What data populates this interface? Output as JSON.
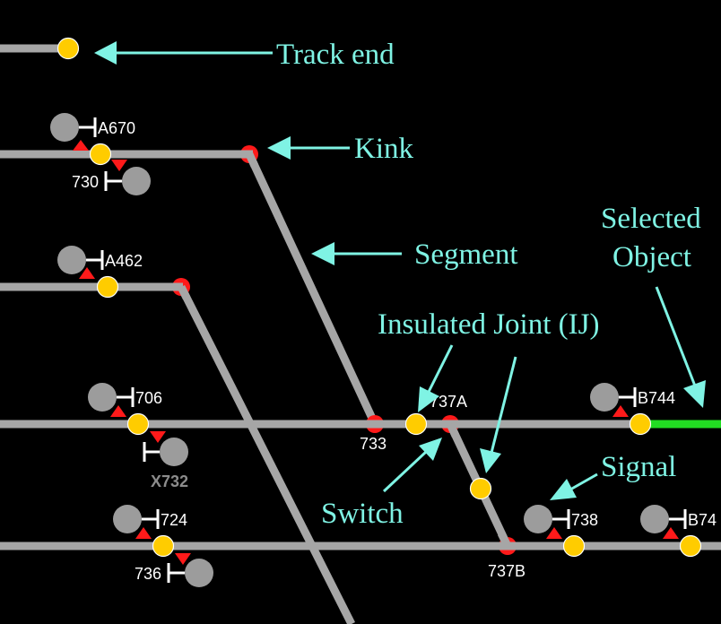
{
  "annotations": {
    "track_end": "Track end",
    "kink": "Kink",
    "segment": "Segment",
    "selected_object_line1": "Selected",
    "selected_object_line2": "Object",
    "insulated_joint": "Insulated Joint (IJ)",
    "switch": "Switch",
    "signal": "Signal"
  },
  "signals": {
    "a670": "A670",
    "s730": "730",
    "a462": "A462",
    "s706": "706",
    "x732": "X732",
    "s724": "724",
    "s736": "736",
    "s738": "738",
    "b744": "B744",
    "b74x": "B74"
  },
  "switches": {
    "s733": "733",
    "s737a": "737A",
    "s737b": "737B"
  },
  "colors": {
    "background": "#000000",
    "track": "#a6a6a6",
    "selected_track": "#22dd22",
    "insulated_joint": "#ffcc00",
    "switch": "#ff1a1a",
    "signal_head": "#9c9c9c",
    "annotation": "#7ff3e4"
  }
}
